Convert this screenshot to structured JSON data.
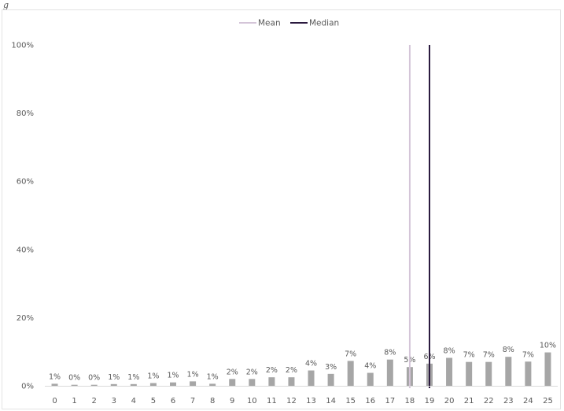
{
  "page_label": "g",
  "colors": {
    "bar": "#a6a6a6",
    "mean": "#d4c5d8",
    "median": "#2b1a3f",
    "text": "#595959"
  },
  "chart_data": {
    "type": "bar",
    "categories": [
      "0",
      "1",
      "2",
      "3",
      "4",
      "5",
      "6",
      "7",
      "8",
      "9",
      "10",
      "11",
      "12",
      "13",
      "14",
      "15",
      "16",
      "17",
      "18",
      "19",
      "20",
      "21",
      "22",
      "23",
      "24",
      "25"
    ],
    "values": [
      0.6,
      0.3,
      0.3,
      0.5,
      0.5,
      0.8,
      1.0,
      1.3,
      0.6,
      2.0,
      2.0,
      2.5,
      2.5,
      4.5,
      3.5,
      7.3,
      3.8,
      7.7,
      5.5,
      6.5,
      8.2,
      7.0,
      7.0,
      8.5,
      7.1,
      9.8
    ],
    "data_labels": [
      "1%",
      "0%",
      "0%",
      "1%",
      "1%",
      "1%",
      "1%",
      "1%",
      "1%",
      "2%",
      "2%",
      "2%",
      "2%",
      "4%",
      "3%",
      "7%",
      "4%",
      "8%",
      "5%",
      "6%",
      "8%",
      "7%",
      "7%",
      "8%",
      "7%",
      "10%"
    ],
    "ylim": [
      0,
      100
    ],
    "yticks": [
      0,
      20,
      40,
      60,
      80,
      100
    ],
    "ytick_labels": [
      "0%",
      "20%",
      "40%",
      "60%",
      "80%",
      "100%"
    ],
    "reference_lines": [
      {
        "name": "Mean",
        "x": 18.0
      },
      {
        "name": "Median",
        "x": 19.0
      }
    ],
    "legend": {
      "placement": "top-center",
      "entries": [
        "Mean",
        "Median"
      ]
    },
    "grid": false
  }
}
